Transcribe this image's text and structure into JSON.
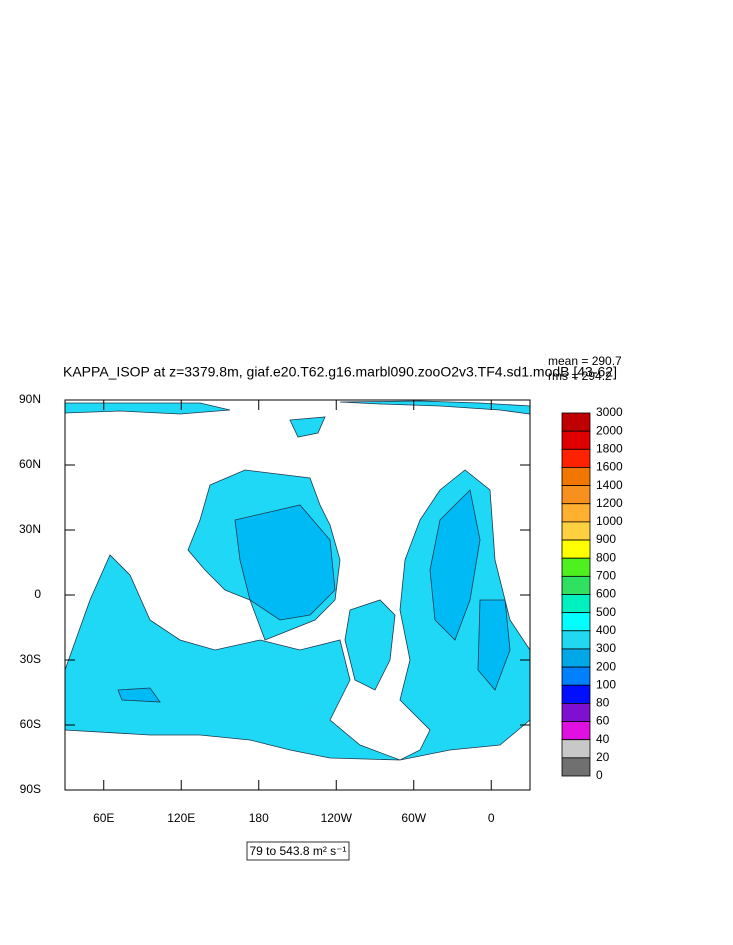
{
  "chart_data": {
    "type": "map",
    "title": "KAPPA_ISOP at z=3379.8m, giaf.e20.T62.g16.marbl090.zooO2v3.TF4.sd1.modB [43-62]",
    "annotations": [
      "mean = 290.7",
      "rms = 294.2"
    ],
    "range_label": "79 to 543.8 m² s⁻¹",
    "xlim": [
      30,
      390
    ],
    "xticks": [
      {
        "value": 60,
        "label": "60E"
      },
      {
        "value": 120,
        "label": "120E"
      },
      180,
      {
        "value": 240,
        "label": "120W"
      },
      {
        "value": 300,
        "label": "60W"
      },
      {
        "value": 360,
        "label": "0"
      }
    ],
    "ylim": [
      -90,
      90
    ],
    "yticks": [
      {
        "value": -90,
        "label": "90S"
      },
      {
        "value": -60,
        "label": "60S"
      },
      {
        "value": -30,
        "label": "30S"
      },
      0,
      {
        "value": 30,
        "label": "30N"
      },
      {
        "value": 60,
        "label": "60N"
      },
      {
        "value": 90,
        "label": "90N"
      }
    ],
    "colorbar": {
      "levels": [
        3000,
        2000,
        1800,
        1600,
        1400,
        1200,
        1000,
        900,
        800,
        700,
        600,
        500,
        400,
        300,
        200,
        100,
        80,
        60,
        40,
        20,
        0
      ],
      "colors": [
        "#c00000",
        "#e00000",
        "#ff2200",
        "#f07800",
        "#f89020",
        "#ffb030",
        "#ffd040",
        "#ffff00",
        "#50f020",
        "#30e060",
        "#00f0c0",
        "#00ffff",
        "#20d8f0",
        "#00a8e8",
        "#0080ff",
        "#0010ff",
        "#8010d0",
        "#e010e0",
        "#c8c8c8",
        "#707070"
      ]
    }
  }
}
